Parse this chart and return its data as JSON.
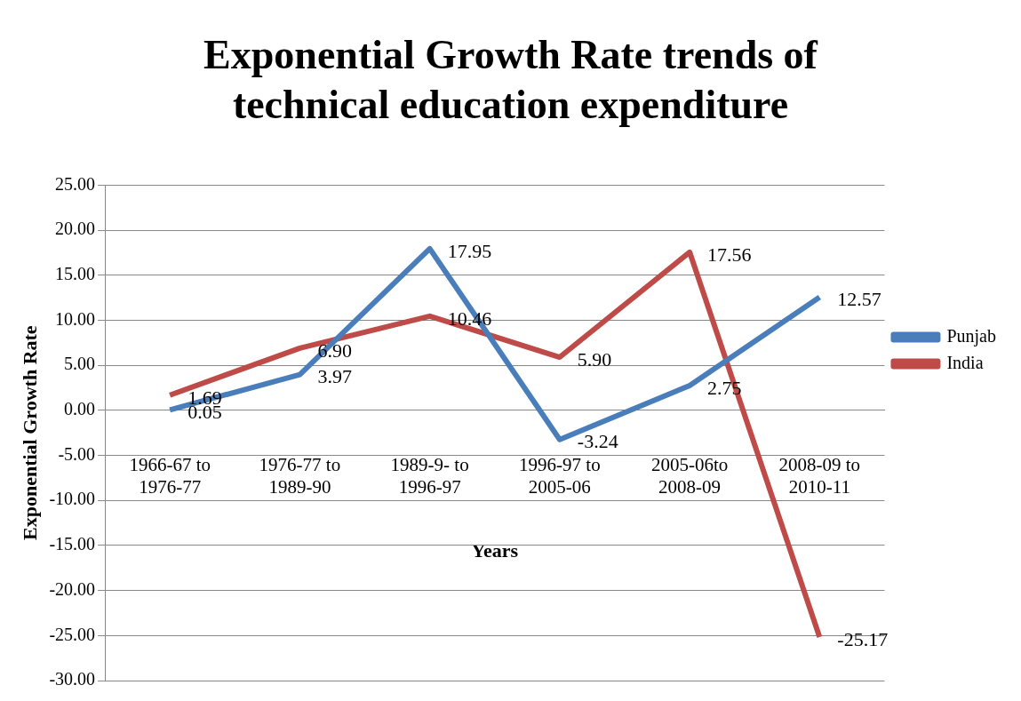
{
  "chart_data": {
    "type": "line",
    "title": "Exponential Growth Rate trends of technical education expenditure",
    "xlabel": "Years",
    "ylabel": "Exponential Growth Rate",
    "categories": [
      "1966-67 to 1976-77",
      "1976-77 to 1989-90",
      "1989-9- to 1996-97",
      "1996-97 to 2005-06",
      "2005-06to 2008-09",
      "2008-09 to 2010-11"
    ],
    "series": [
      {
        "name": "Punjab",
        "color": "#4a7ebb",
        "values": [
          0.05,
          3.97,
          17.95,
          -3.24,
          2.75,
          12.57
        ],
        "value_labels": [
          "0.05",
          "3.97",
          "17.95",
          "-3.24",
          "2.75",
          "12.57"
        ]
      },
      {
        "name": "India",
        "color": "#be4b48",
        "values": [
          1.69,
          6.9,
          10.46,
          5.9,
          17.56,
          -25.17
        ],
        "value_labels": [
          "1.69",
          "6.90",
          "10.46",
          "5.90",
          "17.56",
          "-25.17"
        ]
      }
    ],
    "ylim": [
      -30,
      25
    ],
    "yticks": [
      {
        "value": -30,
        "label": "-30.00"
      },
      {
        "value": -25,
        "label": "-25.00"
      },
      {
        "value": -20,
        "label": "-20.00"
      },
      {
        "value": -15,
        "label": "-15.00"
      },
      {
        "value": -10,
        "label": "-10.00"
      },
      {
        "value": -5,
        "label": "-5.00"
      },
      {
        "value": 0,
        "label": "0.00"
      },
      {
        "value": 5,
        "label": "5.00"
      },
      {
        "value": 10,
        "label": "10.00"
      },
      {
        "value": 15,
        "label": "15.00"
      },
      {
        "value": 20,
        "label": "20.00"
      },
      {
        "value": 25,
        "label": "25.00"
      }
    ],
    "grid": "y",
    "legend": "right",
    "marker": "none",
    "line_style": "solid"
  }
}
